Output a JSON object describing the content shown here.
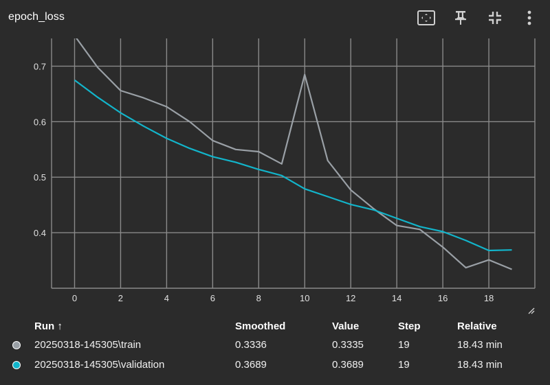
{
  "card": {
    "title": "epoch_loss"
  },
  "toolbar": {
    "icons": [
      "fit-domain-icon",
      "pin-icon",
      "collapse-icon",
      "more-vert-icon"
    ]
  },
  "chart_data": {
    "type": "line",
    "title": "epoch_loss",
    "xlabel": "",
    "ylabel": "",
    "xlim": [
      -1,
      20
    ],
    "ylim": [
      0.3,
      0.75
    ],
    "x_ticks": [
      0,
      2,
      4,
      6,
      8,
      10,
      12,
      14,
      16,
      18
    ],
    "y_ticks": [
      0.4,
      0.5,
      0.6,
      0.7
    ],
    "grid": true,
    "series": [
      {
        "name": "20250318-145305\\train",
        "color": "#9aa0a6",
        "x": [
          0,
          1,
          2,
          3,
          4,
          5,
          6,
          7,
          8,
          9,
          10,
          11,
          12,
          13,
          14,
          15,
          16,
          17,
          18,
          19
        ],
        "values": [
          0.755,
          0.698,
          0.656,
          0.643,
          0.627,
          0.6,
          0.566,
          0.55,
          0.546,
          0.524,
          0.685,
          0.53,
          0.477,
          0.443,
          0.413,
          0.406,
          0.374,
          0.337,
          0.351,
          0.334
        ]
      },
      {
        "name": "20250318-145305\\validation",
        "color": "#12b5cb",
        "x": [
          0,
          1,
          2,
          3,
          4,
          5,
          6,
          7,
          8,
          9,
          10,
          11,
          12,
          13,
          14,
          15,
          16,
          17,
          18,
          19
        ],
        "values": [
          0.675,
          0.644,
          0.616,
          0.592,
          0.57,
          0.552,
          0.537,
          0.527,
          0.514,
          0.503,
          0.479,
          0.465,
          0.451,
          0.441,
          0.426,
          0.411,
          0.402,
          0.386,
          0.368,
          0.369
        ]
      }
    ]
  },
  "table": {
    "headers": {
      "run": "Run ↑",
      "smoothed": "Smoothed",
      "value": "Value",
      "step": "Step",
      "relative": "Relative"
    },
    "rows": [
      {
        "color": "#9aa0a6",
        "run": "20250318-145305\\train",
        "smoothed": "0.3336",
        "value": "0.3335",
        "step": "19",
        "relative": "18.43 min"
      },
      {
        "color": "#12b5cb",
        "run": "20250318-145305\\validation",
        "smoothed": "0.3689",
        "value": "0.3689",
        "step": "19",
        "relative": "18.43 min"
      }
    ]
  }
}
